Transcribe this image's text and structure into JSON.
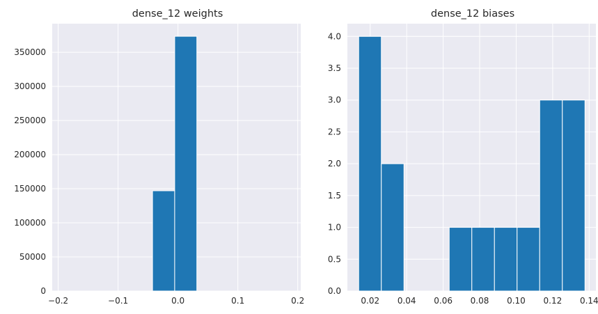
{
  "colors": {
    "plot_bg": "#eaeaf2",
    "bar": "#1f77b4",
    "grid": "#ffffff",
    "text": "#262626"
  },
  "chart_data": [
    {
      "type": "bar",
      "title": "dense_12 weights",
      "xlabel": "",
      "ylabel": "",
      "xlim": [
        -0.21,
        0.205
      ],
      "ylim": [
        0,
        392000
      ],
      "xticks": [
        -0.2,
        -0.1,
        0.0,
        0.1,
        0.2
      ],
      "xtick_labels": [
        "−0.2",
        "−0.1",
        "0.0",
        "0.1",
        "0.2"
      ],
      "yticks": [
        0,
        50000,
        100000,
        150000,
        200000,
        250000,
        300000,
        350000
      ],
      "ytick_labels": [
        "0",
        "50000",
        "100000",
        "150000",
        "200000",
        "250000",
        "300000",
        "350000"
      ],
      "grid": true,
      "bins": [
        {
          "x0": -0.0425,
          "x1": -0.0055,
          "value": 147000
        },
        {
          "x0": -0.0055,
          "x1": 0.0315,
          "value": 373500
        }
      ]
    },
    {
      "type": "bar",
      "title": "dense_12 biases",
      "xlabel": "",
      "ylabel": "",
      "xlim": [
        0.0075,
        0.1437
      ],
      "ylim": [
        0,
        4.2
      ],
      "xticks": [
        0.02,
        0.04,
        0.06,
        0.08,
        0.1,
        0.12,
        0.14
      ],
      "xtick_labels": [
        "0.02",
        "0.04",
        "0.06",
        "0.08",
        "0.10",
        "0.12",
        "0.14"
      ],
      "yticks": [
        0,
        0.5,
        1.0,
        1.5,
        2.0,
        2.5,
        3.0,
        3.5,
        4.0
      ],
      "ytick_labels": [
        "0.0",
        "0.5",
        "1.0",
        "1.5",
        "2.0",
        "2.5",
        "3.0",
        "3.5",
        "4.0"
      ],
      "grid": true,
      "bins": [
        {
          "x0": 0.0137,
          "x1": 0.0261,
          "value": 4
        },
        {
          "x0": 0.0261,
          "x1": 0.0385,
          "value": 2
        },
        {
          "x0": 0.0385,
          "x1": 0.0509,
          "value": 0
        },
        {
          "x0": 0.0509,
          "x1": 0.0633,
          "value": 0
        },
        {
          "x0": 0.0633,
          "x1": 0.0757,
          "value": 1
        },
        {
          "x0": 0.0757,
          "x1": 0.0881,
          "value": 1
        },
        {
          "x0": 0.0881,
          "x1": 0.1005,
          "value": 1
        },
        {
          "x0": 0.1005,
          "x1": 0.1129,
          "value": 1
        },
        {
          "x0": 0.1129,
          "x1": 0.1253,
          "value": 3
        },
        {
          "x0": 0.1253,
          "x1": 0.1377,
          "value": 3
        }
      ]
    }
  ]
}
